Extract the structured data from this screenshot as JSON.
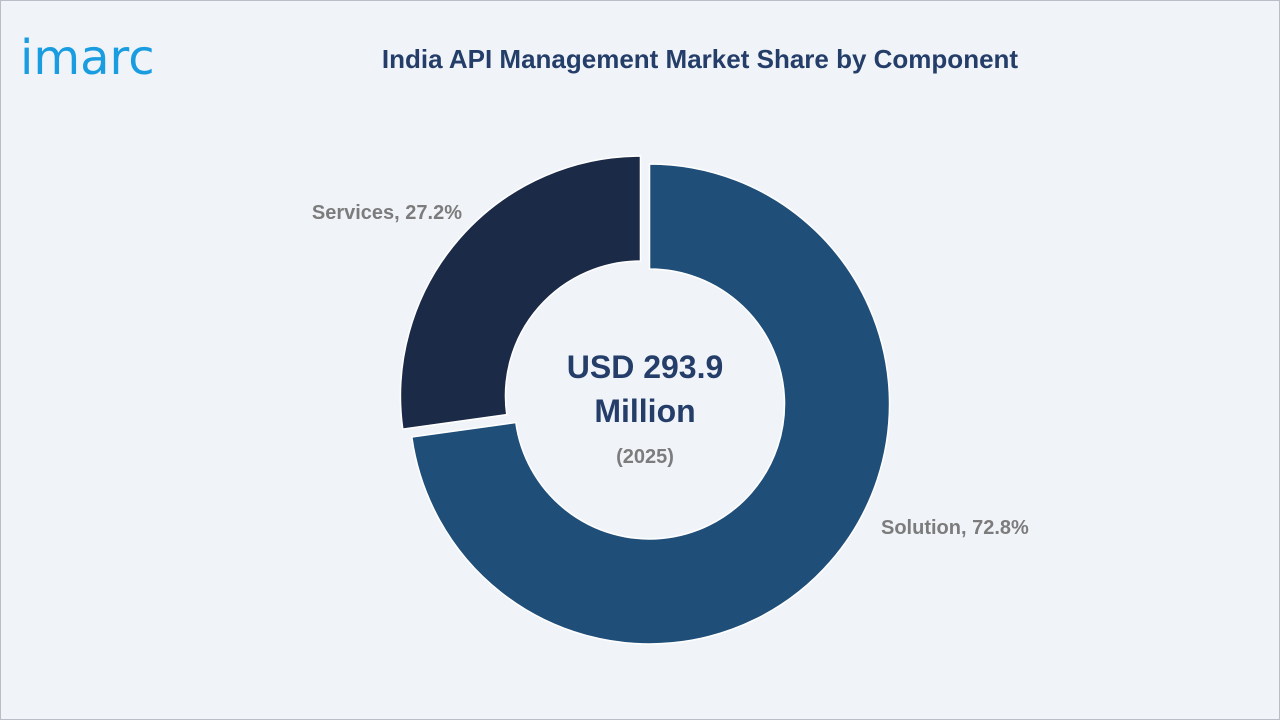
{
  "brand": {
    "logo_text": "imarc",
    "logo_color": "#1a9ce0"
  },
  "title": "India API Management Market Share by Component",
  "chart_data": {
    "type": "pie",
    "variant": "donut",
    "title": "India API Management Market Share by Component",
    "categories": [
      "Solution",
      "Services"
    ],
    "values": [
      72.8,
      27.2
    ],
    "unit": "%",
    "labels": [
      "Solution, 72.8%",
      "Services, 27.2%"
    ],
    "colors": [
      "#1f4e79",
      "#1b2a47"
    ],
    "center_text": {
      "value_line1": "USD 293.9",
      "value_line2": "Million",
      "year": "(2025)"
    }
  },
  "colors": {
    "background": "#f0f4f9",
    "title": "#243e69",
    "label": "#7c7c7c"
  }
}
